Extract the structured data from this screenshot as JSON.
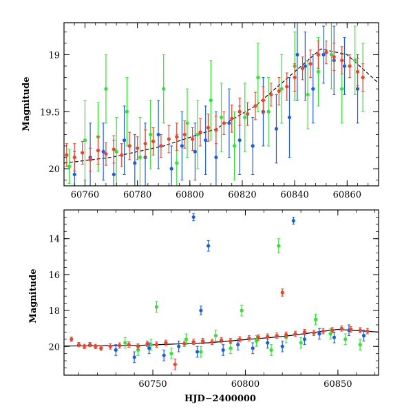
{
  "chart_data": [
    {
      "type": "scatter",
      "title": "",
      "xlabel": "",
      "ylabel": "Magnitude",
      "xlim": [
        60752,
        60872
      ],
      "ylim": [
        20.15,
        18.72
      ],
      "y_inverted": true,
      "xticks": [
        60760,
        60780,
        60800,
        60820,
        60840,
        60860
      ],
      "yticks": [
        19,
        19.5,
        20
      ],
      "ytick_labels": [
        "19",
        "19.5",
        "20"
      ],
      "grid": false,
      "legend": "none",
      "series": [
        {
          "color": "#2ee62e",
          "marker": "circle",
          "error_bars": true,
          "x": [
            60754,
            60760,
            60765,
            60768,
            60772,
            60776,
            60781,
            60785,
            60790,
            60795,
            60799,
            60803,
            60808,
            60812,
            60817,
            60821,
            60826,
            60830,
            60835,
            60840,
            60845,
            60849,
            60854,
            60858,
            60863,
            60866
          ],
          "y": [
            19.98,
            19.75,
            19.72,
            19.3,
            19.85,
            19.5,
            19.9,
            19.7,
            19.3,
            19.95,
            19.6,
            19.7,
            19.4,
            19.55,
            19.8,
            19.55,
            19.2,
            19.5,
            19.3,
            19.1,
            19.35,
            19.15,
            19.0,
            19.3,
            19.05,
            19.2
          ],
          "yerr": [
            0.15,
            0.35,
            0.3,
            0.3,
            0.3,
            0.3,
            0.35,
            0.3,
            0.3,
            0.25,
            0.3,
            0.3,
            0.35,
            0.3,
            0.3,
            0.3,
            0.3,
            0.3,
            0.3,
            0.3,
            0.3,
            0.3,
            0.3,
            0.3,
            0.3,
            0.3
          ]
        },
        {
          "color": "#1a5fe0",
          "marker": "circle",
          "error_bars": true,
          "x": [
            60756,
            60762,
            60767,
            60771,
            60775,
            60779,
            60783,
            60788,
            60793,
            60797,
            60802,
            60806,
            60810,
            60815,
            60819,
            60824,
            60828,
            60833,
            60838,
            60841,
            60844,
            60847,
            60851,
            60855,
            60859,
            60864
          ],
          "y": [
            20.05,
            19.9,
            19.85,
            20.05,
            19.75,
            19.95,
            19.9,
            19.7,
            20.0,
            19.8,
            19.85,
            19.75,
            19.9,
            19.6,
            19.75,
            19.8,
            19.5,
            19.65,
            19.55,
            19.0,
            19.1,
            19.3,
            19.0,
            19.05,
            19.1,
            19.3
          ],
          "yerr": [
            0.2,
            0.3,
            0.25,
            0.3,
            0.3,
            0.25,
            0.3,
            0.3,
            0.2,
            0.3,
            0.25,
            0.3,
            0.4,
            0.3,
            0.3,
            0.25,
            0.3,
            0.3,
            0.35,
            0.4,
            0.3,
            0.3,
            0.25,
            0.3,
            0.25,
            0.3
          ]
        },
        {
          "color": "#f0412a",
          "marker": "circle",
          "error_bars": true,
          "x": [
            60753,
            60756,
            60759,
            60762,
            60765,
            60768,
            60771,
            60774,
            60777,
            60780,
            60783,
            60786,
            60789,
            60792,
            60795,
            60798,
            60801,
            60804,
            60807,
            60810,
            60813,
            60816,
            60819,
            60822,
            60825,
            60828,
            60831,
            60834,
            60837,
            60840,
            60843,
            60846,
            60849,
            60852,
            60855,
            60858,
            60861,
            60864,
            60866
          ],
          "y": [
            19.88,
            19.9,
            19.86,
            19.92,
            19.84,
            19.87,
            19.83,
            19.88,
            19.8,
            19.82,
            19.78,
            19.76,
            19.8,
            19.74,
            19.72,
            19.7,
            19.74,
            19.68,
            19.64,
            19.66,
            19.6,
            19.56,
            19.5,
            19.52,
            19.45,
            19.4,
            19.35,
            19.32,
            19.28,
            19.2,
            19.12,
            19.08,
            19.0,
            18.98,
            19.02,
            19.05,
            19.1,
            19.15,
            19.2
          ],
          "yerr": [
            0.1,
            0.12,
            0.1,
            0.1,
            0.12,
            0.1,
            0.12,
            0.1,
            0.12,
            0.1,
            0.12,
            0.12,
            0.1,
            0.12,
            0.12,
            0.12,
            0.1,
            0.12,
            0.12,
            0.12,
            0.1,
            0.12,
            0.12,
            0.1,
            0.12,
            0.12,
            0.1,
            0.12,
            0.12,
            0.12,
            0.1,
            0.12,
            0.12,
            0.1,
            0.12,
            0.12,
            0.1,
            0.12,
            0.12
          ]
        }
      ],
      "model_curve": {
        "color": "#000000",
        "style": "dashed",
        "x": [
          60752,
          60770,
          60790,
          60810,
          60825,
          60840,
          60850,
          60860,
          60872
        ],
        "y": [
          19.95,
          19.9,
          19.8,
          19.65,
          19.45,
          19.15,
          18.95,
          19.0,
          19.25
        ]
      }
    },
    {
      "type": "scatter",
      "title": "",
      "xlabel": "HJD−2400000",
      "ylabel": "Magnitude",
      "xlim": [
        60702,
        60872
      ],
      "ylim": [
        21.6,
        12.4
      ],
      "y_inverted": true,
      "xticks": [
        60750,
        60800,
        60850
      ],
      "yticks": [
        14,
        16,
        18,
        20
      ],
      "ytick_labels": [
        "14",
        "16",
        "18",
        "20"
      ],
      "grid": false,
      "legend": "none",
      "series": [
        {
          "color": "#2ee62e",
          "marker": "circle",
          "error_bars": true,
          "x": [
            60735,
            60742,
            60749,
            60752,
            60760,
            60768,
            60776,
            60784,
            60792,
            60798,
            60806,
            60814,
            60818,
            60822,
            60830,
            60838,
            60846,
            60854,
            60862
          ],
          "y": [
            19.8,
            20.2,
            19.9,
            17.8,
            20.4,
            19.6,
            20.3,
            19.4,
            20.1,
            18.0,
            19.7,
            20.2,
            14.4,
            19.5,
            19.8,
            18.5,
            19.3,
            19.6,
            19.9
          ],
          "yerr": [
            0.3,
            0.3,
            0.3,
            0.3,
            0.3,
            0.3,
            0.3,
            0.3,
            0.3,
            0.3,
            0.3,
            0.3,
            0.4,
            0.3,
            0.3,
            0.3,
            0.3,
            0.3,
            0.3
          ]
        },
        {
          "color": "#1a5fe0",
          "marker": "circle",
          "error_bars": true,
          "x": [
            60730,
            60740,
            60748,
            60756,
            60764,
            60772,
            60774,
            60776,
            60780,
            60788,
            60796,
            60804,
            60812,
            60820,
            60826,
            60832,
            60840,
            60848,
            60856,
            60864
          ],
          "y": [
            20.2,
            20.6,
            20.1,
            20.5,
            20.0,
            12.8,
            20.3,
            18.0,
            14.4,
            20.2,
            19.9,
            20.1,
            19.8,
            20.0,
            13.0,
            19.6,
            19.3,
            19.5,
            19.1,
            19.4
          ],
          "yerr": [
            0.3,
            0.3,
            0.3,
            0.3,
            0.3,
            0.2,
            0.3,
            0.25,
            0.3,
            0.3,
            0.3,
            0.3,
            0.3,
            0.3,
            0.2,
            0.3,
            0.3,
            0.3,
            0.3,
            0.3
          ]
        },
        {
          "color": "#f0412a",
          "marker": "circle",
          "error_bars": true,
          "x": [
            60706,
            60710,
            60713,
            60716,
            60719,
            60722,
            60727,
            60732,
            60737,
            60742,
            60747,
            60752,
            60757,
            60762,
            60767,
            60772,
            60777,
            60782,
            60787,
            60792,
            60797,
            60802,
            60807,
            60812,
            60817,
            60820,
            60822,
            60827,
            60832,
            60837,
            60842,
            60847,
            60852,
            60857,
            60862,
            60866
          ],
          "y": [
            19.6,
            19.9,
            20.0,
            19.9,
            20.0,
            20.1,
            20.0,
            19.95,
            19.9,
            20.0,
            19.85,
            19.9,
            19.8,
            21.0,
            19.85,
            19.75,
            19.7,
            19.75,
            19.65,
            19.7,
            19.6,
            19.55,
            19.5,
            19.45,
            19.4,
            17.0,
            19.35,
            19.3,
            19.2,
            19.25,
            19.15,
            19.1,
            19.0,
            19.05,
            19.1,
            19.15
          ],
          "yerr": [
            0.12,
            0.12,
            0.12,
            0.12,
            0.12,
            0.12,
            0.15,
            0.15,
            0.15,
            0.15,
            0.15,
            0.15,
            0.15,
            0.3,
            0.15,
            0.15,
            0.15,
            0.15,
            0.15,
            0.15,
            0.15,
            0.15,
            0.15,
            0.15,
            0.15,
            0.2,
            0.15,
            0.15,
            0.15,
            0.15,
            0.15,
            0.15,
            0.15,
            0.15,
            0.15,
            0.15
          ]
        }
      ],
      "model_curve": {
        "color": "#000000",
        "style": "solid",
        "x": [
          60702,
          60740,
          60780,
          60820,
          60850,
          60872
        ],
        "y": [
          19.98,
          19.95,
          19.8,
          19.45,
          19.05,
          19.2
        ]
      }
    }
  ]
}
